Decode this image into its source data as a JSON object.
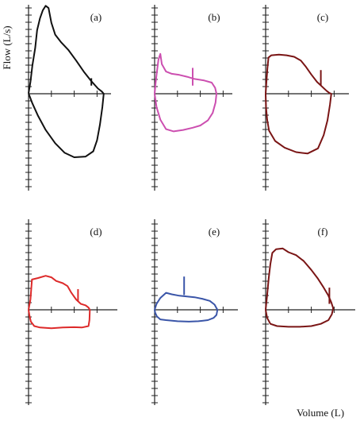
{
  "figure": {
    "ylabel": "Flow (L/s)",
    "xlabel": "Volume (L)"
  },
  "chart_data": [
    {
      "type": "line",
      "panel_label": "(a)",
      "color": "#111111",
      "tick_mark": {
        "x": 3.3,
        "y1": 1.1,
        "y2": 2.1
      },
      "loop": [
        [
          0.0,
          0.05
        ],
        [
          0.1,
          1.6
        ],
        [
          0.2,
          3.8
        ],
        [
          0.35,
          6.2
        ],
        [
          0.45,
          8.6
        ],
        [
          0.6,
          10.2
        ],
        [
          0.75,
          11.3
        ],
        [
          0.9,
          11.9
        ],
        [
          1.05,
          11.6
        ],
        [
          1.2,
          9.6
        ],
        [
          1.4,
          8.0
        ],
        [
          1.7,
          7.0
        ],
        [
          2.1,
          5.9
        ],
        [
          2.5,
          4.5
        ],
        [
          2.9,
          3.0
        ],
        [
          3.3,
          1.7
        ],
        [
          3.65,
          0.7
        ],
        [
          3.85,
          0.3
        ],
        [
          3.95,
          0.0
        ],
        [
          3.88,
          -1.8
        ],
        [
          3.75,
          -4.2
        ],
        [
          3.6,
          -6.3
        ],
        [
          3.4,
          -7.8
        ],
        [
          3.0,
          -8.5
        ],
        [
          2.4,
          -8.6
        ],
        [
          1.9,
          -8.0
        ],
        [
          1.4,
          -6.7
        ],
        [
          0.9,
          -4.9
        ],
        [
          0.5,
          -3.0
        ],
        [
          0.2,
          -1.3
        ],
        [
          0.0,
          0.05
        ]
      ]
    },
    {
      "type": "line",
      "panel_label": "(b)",
      "color": "#cc4fb0",
      "tick_mark": {
        "x": 2.0,
        "y1": 1.1,
        "y2": 3.5
      },
      "loop": [
        [
          0.0,
          0.0
        ],
        [
          0.05,
          1.4
        ],
        [
          0.12,
          3.0
        ],
        [
          0.2,
          4.6
        ],
        [
          0.3,
          5.4
        ],
        [
          0.38,
          4.0
        ],
        [
          0.6,
          3.0
        ],
        [
          0.9,
          2.7
        ],
        [
          1.3,
          2.55
        ],
        [
          1.7,
          2.3
        ],
        [
          2.1,
          2.0
        ],
        [
          2.6,
          1.8
        ],
        [
          3.0,
          1.5
        ],
        [
          3.18,
          0.8
        ],
        [
          3.25,
          0.0
        ],
        [
          3.2,
          -1.2
        ],
        [
          3.05,
          -2.6
        ],
        [
          2.8,
          -3.6
        ],
        [
          2.4,
          -4.3
        ],
        [
          2.0,
          -4.6
        ],
        [
          1.5,
          -4.9
        ],
        [
          1.0,
          -5.1
        ],
        [
          0.6,
          -4.8
        ],
        [
          0.3,
          -3.5
        ],
        [
          0.1,
          -1.8
        ],
        [
          0.0,
          0.0
        ]
      ]
    },
    {
      "type": "line",
      "panel_label": "(c)",
      "color": "#7a1515",
      "tick_mark": {
        "x": 2.9,
        "y1": 1.1,
        "y2": 3.2
      },
      "loop": [
        [
          0.0,
          0.0
        ],
        [
          0.04,
          1.6
        ],
        [
          0.09,
          3.4
        ],
        [
          0.15,
          4.9
        ],
        [
          0.3,
          5.2
        ],
        [
          0.7,
          5.3
        ],
        [
          1.1,
          5.2
        ],
        [
          1.5,
          5.0
        ],
        [
          1.85,
          4.5
        ],
        [
          2.1,
          3.7
        ],
        [
          2.4,
          2.6
        ],
        [
          2.7,
          1.6
        ],
        [
          2.95,
          1.0
        ],
        [
          3.2,
          0.4
        ],
        [
          3.35,
          0.1
        ],
        [
          3.45,
          0.0
        ],
        [
          3.38,
          -1.5
        ],
        [
          3.25,
          -3.6
        ],
        [
          3.05,
          -5.6
        ],
        [
          2.75,
          -7.4
        ],
        [
          2.2,
          -8.1
        ],
        [
          1.6,
          -7.9
        ],
        [
          1.0,
          -7.3
        ],
        [
          0.5,
          -6.4
        ],
        [
          0.18,
          -5.0
        ],
        [
          0.08,
          -3.5
        ],
        [
          0.02,
          -1.8
        ],
        [
          0.0,
          0.0
        ]
      ]
    },
    {
      "type": "line",
      "panel_label": "(d)",
      "color": "#dd2a2a",
      "tick_mark": {
        "x": 2.6,
        "y1": 1.1,
        "y2": 2.8
      },
      "loop": [
        [
          0.0,
          0.0
        ],
        [
          0.1,
          1.4
        ],
        [
          0.15,
          3.1
        ],
        [
          0.18,
          4.1
        ],
        [
          0.5,
          4.3
        ],
        [
          0.9,
          4.6
        ],
        [
          1.2,
          4.4
        ],
        [
          1.45,
          3.9
        ],
        [
          1.8,
          3.6
        ],
        [
          2.05,
          3.2
        ],
        [
          2.25,
          2.3
        ],
        [
          2.5,
          1.4
        ],
        [
          2.75,
          0.8
        ],
        [
          3.0,
          0.6
        ],
        [
          3.15,
          0.3
        ],
        [
          3.22,
          0.0
        ],
        [
          3.2,
          -1.4
        ],
        [
          3.15,
          -2.2
        ],
        [
          2.8,
          -2.4
        ],
        [
          2.4,
          -2.35
        ],
        [
          1.8,
          -2.4
        ],
        [
          1.2,
          -2.5
        ],
        [
          0.6,
          -2.4
        ],
        [
          0.3,
          -2.2
        ],
        [
          0.12,
          -1.6
        ],
        [
          0.05,
          -0.8
        ],
        [
          0.0,
          0.0
        ]
      ]
    },
    {
      "type": "line",
      "panel_label": "(e)",
      "color": "#3a55a8",
      "tick_mark": {
        "x": 1.55,
        "y1": 2.0,
        "y2": 4.5
      },
      "loop": [
        [
          0.0,
          0.0
        ],
        [
          0.1,
          0.8
        ],
        [
          0.3,
          1.6
        ],
        [
          0.6,
          2.3
        ],
        [
          0.9,
          2.1
        ],
        [
          1.3,
          1.9
        ],
        [
          1.7,
          1.8
        ],
        [
          2.1,
          1.7
        ],
        [
          2.5,
          1.5
        ],
        [
          2.9,
          1.2
        ],
        [
          3.15,
          0.7
        ],
        [
          3.3,
          0.0
        ],
        [
          3.25,
          -0.7
        ],
        [
          3.1,
          -1.1
        ],
        [
          2.8,
          -1.4
        ],
        [
          2.3,
          -1.55
        ],
        [
          1.8,
          -1.6
        ],
        [
          1.2,
          -1.55
        ],
        [
          0.6,
          -1.4
        ],
        [
          0.3,
          -1.3
        ],
        [
          0.12,
          -0.9
        ],
        [
          0.03,
          -0.4
        ],
        [
          0.0,
          0.0
        ]
      ]
    },
    {
      "type": "line",
      "panel_label": "(f)",
      "color": "#7a1515",
      "tick_mark": {
        "x": 3.35,
        "y1": 0.8,
        "y2": 3.0
      },
      "loop": [
        [
          0.0,
          0.0
        ],
        [
          0.08,
          2.0
        ],
        [
          0.16,
          4.2
        ],
        [
          0.25,
          6.2
        ],
        [
          0.35,
          7.7
        ],
        [
          0.55,
          8.2
        ],
        [
          0.9,
          8.3
        ],
        [
          1.2,
          7.8
        ],
        [
          1.6,
          7.4
        ],
        [
          2.0,
          6.6
        ],
        [
          2.4,
          5.4
        ],
        [
          2.75,
          4.2
        ],
        [
          3.05,
          3.0
        ],
        [
          3.3,
          1.9
        ],
        [
          3.45,
          1.0
        ],
        [
          3.55,
          0.2
        ],
        [
          3.48,
          -0.6
        ],
        [
          3.3,
          -1.4
        ],
        [
          2.9,
          -1.9
        ],
        [
          2.4,
          -2.2
        ],
        [
          1.8,
          -2.3
        ],
        [
          1.2,
          -2.3
        ],
        [
          0.6,
          -2.2
        ],
        [
          0.25,
          -1.9
        ],
        [
          0.08,
          -1.1
        ],
        [
          0.0,
          0.0
        ]
      ]
    }
  ]
}
